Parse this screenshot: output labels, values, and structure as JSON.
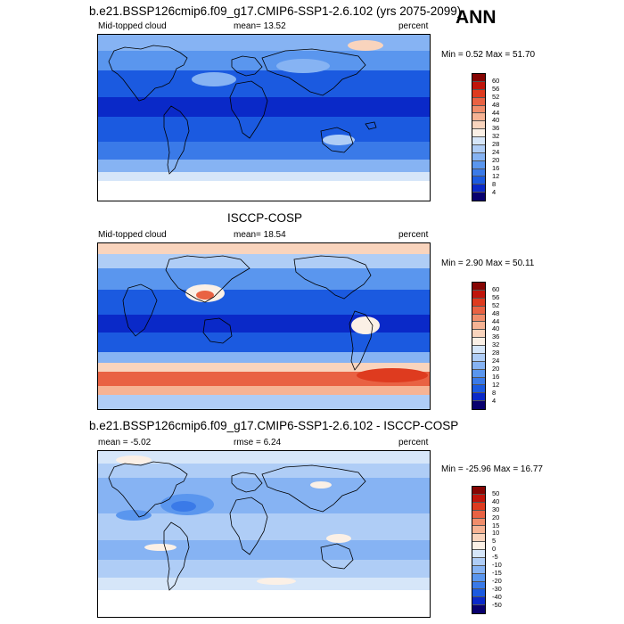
{
  "ann_label": "ANN",
  "colors": {
    "abs_scale": [
      "#08006e",
      "#0a29c8",
      "#1b5ae0",
      "#3a7ae8",
      "#5a96ee",
      "#86b3f3",
      "#afcdf6",
      "#d6e6f9",
      "#fbf0e6",
      "#f9d4bd",
      "#f6b394",
      "#f08d6b",
      "#e96243",
      "#de3b1f",
      "#c0150b",
      "#860503"
    ],
    "diff_scale": [
      "#08006e",
      "#0a29c8",
      "#1b5ae0",
      "#3a7ae8",
      "#5a96ee",
      "#86b3f3",
      "#afcdf6",
      "#d6e6f9",
      "#fbf0e6",
      "#f9d4bd",
      "#f6b394",
      "#f08d6b",
      "#e96243",
      "#de3b1f",
      "#c0150b",
      "#860503"
    ]
  },
  "panels": [
    {
      "title": "b.e21.BSSP126cmip6.f09_g17.CMIP6-SSP1-2.6.102 (yrs 2075-2099)",
      "left_label": "Mid-topped cloud",
      "mean_label": "mean=  13.52",
      "units": "percent",
      "minmax": "Min =   0.52 Max =  51.70",
      "colorbar_labels": [
        "60",
        "56",
        "52",
        "48",
        "44",
        "40",
        "36",
        "32",
        "28",
        "24",
        "20",
        "16",
        "12",
        "8",
        "4"
      ]
    },
    {
      "title": "ISCCP-COSP",
      "left_label": "Mid-topped cloud",
      "mean_label": "mean=  18.54",
      "units": "percent",
      "minmax": "Min =   2.90 Max =  50.11",
      "colorbar_labels": [
        "60",
        "56",
        "52",
        "48",
        "44",
        "40",
        "36",
        "32",
        "28",
        "24",
        "20",
        "16",
        "12",
        "8",
        "4"
      ]
    },
    {
      "title": "b.e21.BSSP126cmip6.f09_g17.CMIP6-SSP1-2.6.102 - ISCCP-COSP",
      "left_label": "mean =  -5.02",
      "mean_label": "rmse =   6.24",
      "units": "percent",
      "minmax": "Min = -25.96 Max =  16.77",
      "colorbar_labels": [
        "50",
        "40",
        "30",
        "20",
        "15",
        "10",
        "5",
        "0",
        "-5",
        "-10",
        "-15",
        "-20",
        "-30",
        "-40",
        "-50"
      ]
    }
  ]
}
